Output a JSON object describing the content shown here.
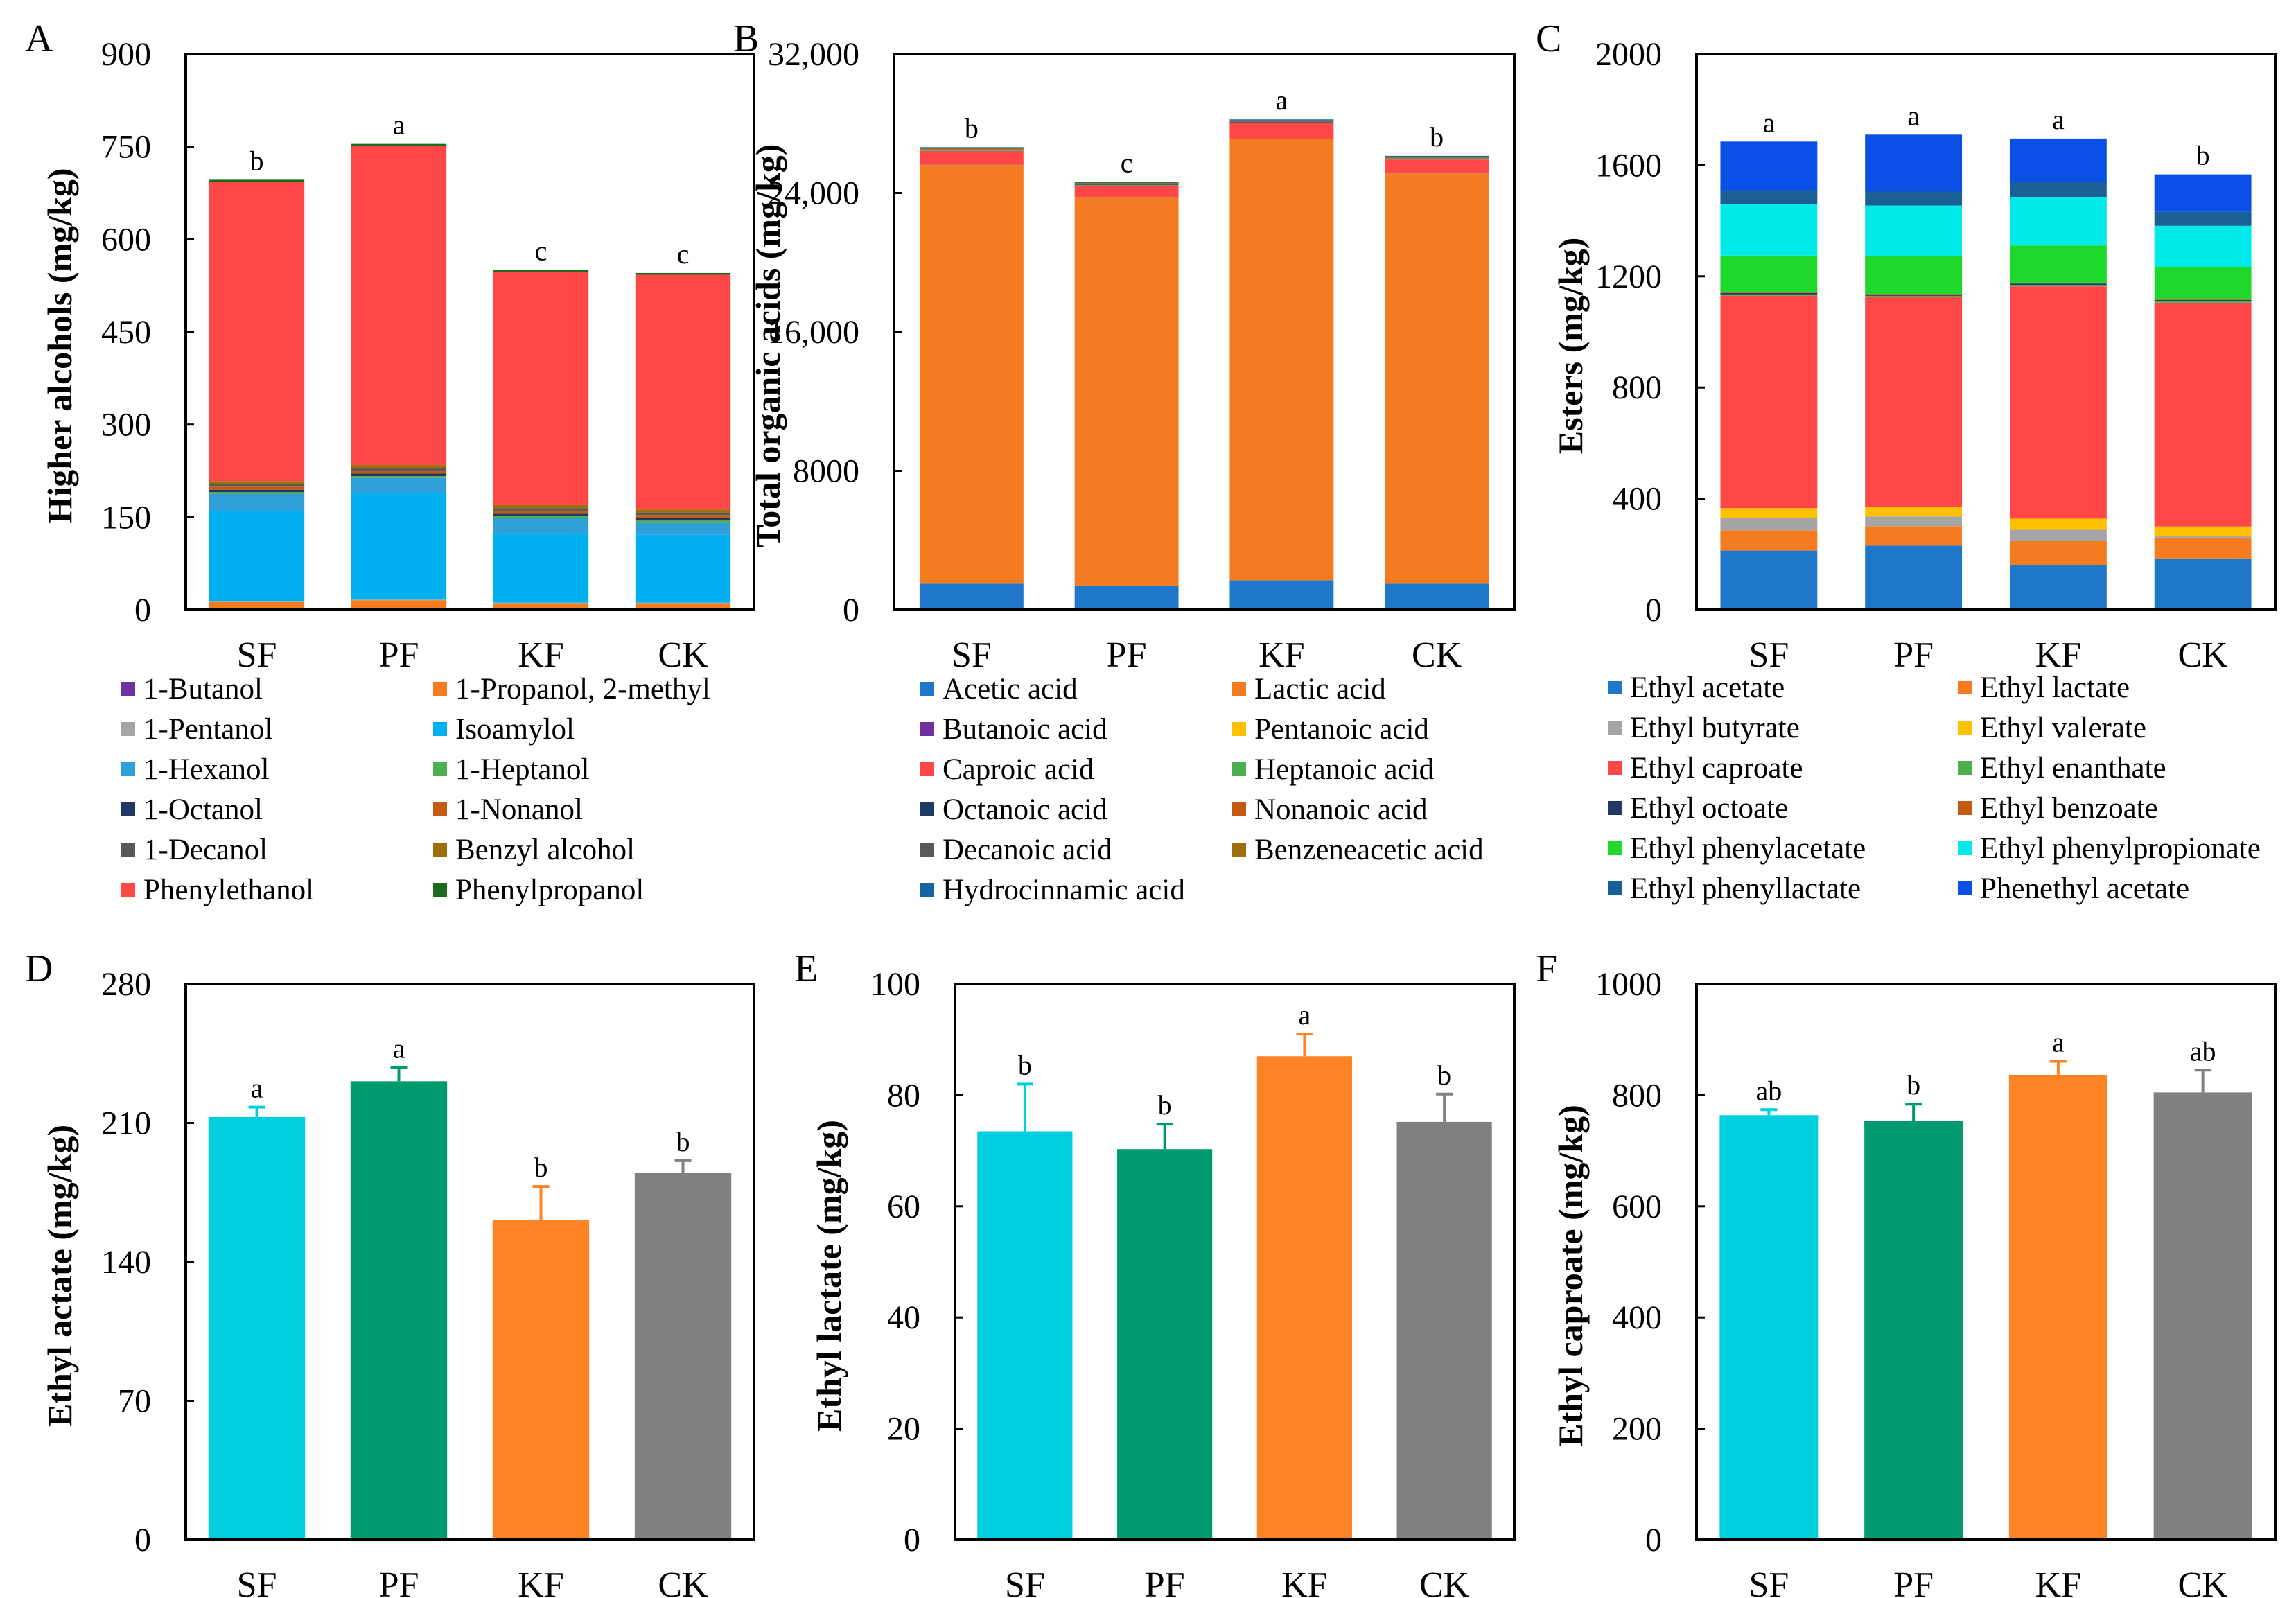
{
  "chart_data": [
    {
      "panel": "A",
      "type": "bar",
      "stacked": true,
      "ylabel": "Higher alcohols (mg/kg)",
      "ylim": [
        0,
        900
      ],
      "yticks": [
        "0",
        "150",
        "300",
        "450",
        "600",
        "750",
        "900"
      ],
      "categories": [
        "SF",
        "PF",
        "KF",
        "CK"
      ],
      "significance": [
        "b",
        "a",
        "c",
        "c"
      ],
      "legend_cols": 2,
      "series": [
        {
          "name": "1-Butanol",
          "color": "#7030a0",
          "values": [
            0.5,
            0.5,
            0.5,
            0.5
          ]
        },
        {
          "name": "1-Propanol, 2-methyl",
          "color": "#f47b20",
          "values": [
            13,
            15,
            10,
            10
          ]
        },
        {
          "name": "1-Pentanol",
          "color": "#a5a5a5",
          "values": [
            1,
            1,
            1,
            1
          ]
        },
        {
          "name": "Isoamylol",
          "color": "#00b0f0",
          "values": [
            145,
            172,
            112,
            110
          ]
        },
        {
          "name": "1-Hexanol",
          "color": "#2e9fd8",
          "values": [
            28,
            25,
            25,
            20
          ]
        },
        {
          "name": "1-Heptanol",
          "color": "#4caf50",
          "values": [
            3,
            3,
            3,
            3
          ]
        },
        {
          "name": "1-Octanol",
          "color": "#1f3864",
          "values": [
            4,
            4,
            4,
            4
          ]
        },
        {
          "name": "1-Nonanol",
          "color": "#c55a11",
          "values": [
            5,
            5,
            5,
            5
          ]
        },
        {
          "name": "1-Decanol",
          "color": "#595959",
          "values": [
            4,
            4,
            4,
            4
          ]
        },
        {
          "name": "Benzyl alcohol",
          "color": "#9c6f0a",
          "values": [
            5,
            5,
            5,
            5
          ]
        },
        {
          "name": "Phenylethanol",
          "color": "#ff4747",
          "values": [
            485,
            517,
            378,
            380
          ]
        },
        {
          "name": "Phenylpropanol",
          "color": "#1e6b1e",
          "values": [
            3,
            3,
            3,
            3
          ]
        }
      ]
    },
    {
      "panel": "B",
      "type": "bar",
      "stacked": true,
      "ylabel": "Total organic acids (mg/kg)",
      "ylim": [
        0,
        32000
      ],
      "yticks": [
        "0",
        "8000",
        "16,000",
        "24,000",
        "32,000"
      ],
      "categories": [
        "SF",
        "PF",
        "KF",
        "CK"
      ],
      "significance": [
        "b",
        "c",
        "a",
        "b"
      ],
      "legend_cols": 2,
      "series": [
        {
          "name": "Acetic acid",
          "color": "#1f77c9",
          "values": [
            1500,
            1400,
            1700,
            1500
          ]
        },
        {
          "name": "Lactic acid",
          "color": "#f47b20",
          "values": [
            24100,
            22300,
            25400,
            23600
          ]
        },
        {
          "name": "Butanoic acid",
          "color": "#7030a0",
          "values": [
            10,
            10,
            10,
            10
          ]
        },
        {
          "name": "Pentanoic acid",
          "color": "#ffc000",
          "values": [
            10,
            10,
            10,
            10
          ]
        },
        {
          "name": "Caproic acid",
          "color": "#ff4747",
          "values": [
            800,
            700,
            900,
            800
          ]
        },
        {
          "name": "Heptanoic acid",
          "color": "#4caf50",
          "values": [
            30,
            30,
            30,
            30
          ]
        },
        {
          "name": "Octanoic acid",
          "color": "#1f3864",
          "values": [
            30,
            30,
            30,
            30
          ]
        },
        {
          "name": "Nonanoic acid",
          "color": "#c55a11",
          "values": [
            20,
            20,
            20,
            20
          ]
        },
        {
          "name": "Decanoic acid",
          "color": "#595959",
          "values": [
            30,
            30,
            30,
            30
          ]
        },
        {
          "name": "Benzeneacetic acid",
          "color": "#9c6f0a",
          "values": [
            50,
            50,
            50,
            50
          ]
        },
        {
          "name": "Hydrocinnamic acid",
          "color": "#1565a0",
          "values": [
            60,
            60,
            60,
            60
          ]
        }
      ]
    },
    {
      "panel": "C",
      "type": "bar",
      "stacked": true,
      "ylabel": "Esters (mg/kg)",
      "ylim": [
        0,
        2000
      ],
      "yticks": [
        "0",
        "400",
        "800",
        "1200",
        "1600",
        "2000"
      ],
      "categories": [
        "SF",
        "PF",
        "KF",
        "CK"
      ],
      "significance": [
        "a",
        "a",
        "a",
        "b"
      ],
      "legend_cols": 2,
      "series": [
        {
          "name": "Ethyl acetate",
          "color": "#1f77c9",
          "values": [
            213,
            231,
            161,
            185
          ]
        },
        {
          "name": "Ethyl lactate",
          "color": "#f47b20",
          "values": [
            73,
            70,
            87,
            75
          ]
        },
        {
          "name": "Ethyl butyrate",
          "color": "#a5a5a5",
          "values": [
            45,
            35,
            40,
            5
          ]
        },
        {
          "name": "Ethyl valerate",
          "color": "#ffc000",
          "values": [
            35,
            35,
            40,
            35
          ]
        },
        {
          "name": "Ethyl caproate",
          "color": "#ff4747",
          "values": [
            764,
            754,
            836,
            805
          ]
        },
        {
          "name": "Ethyl enanthate",
          "color": "#4caf50",
          "values": [
            5,
            5,
            5,
            5
          ]
        },
        {
          "name": "Ethyl octoate",
          "color": "#1f3864",
          "values": [
            5,
            5,
            5,
            5
          ]
        },
        {
          "name": "Ethyl benzoate",
          "color": "#c55a11",
          "values": [
            2,
            2,
            2,
            2
          ]
        },
        {
          "name": "Ethyl phenylacetate",
          "color": "#1ed92b",
          "values": [
            133,
            135,
            135,
            115
          ]
        },
        {
          "name": "Ethyl phenylpropionate",
          "color": "#00eaea",
          "values": [
            185,
            183,
            175,
            150
          ]
        },
        {
          "name": "Ethyl phenyllactate",
          "color": "#1a5f96",
          "values": [
            50,
            50,
            55,
            50
          ]
        },
        {
          "name": "Phenethyl acetate",
          "color": "#0a50e6",
          "values": [
            175,
            205,
            155,
            135
          ]
        }
      ]
    },
    {
      "panel": "D",
      "type": "bar",
      "ylabel": "Ethyl actate (mg/kg)",
      "ylim": [
        0,
        280
      ],
      "yticks": [
        "0",
        "70",
        "140",
        "210",
        "280"
      ],
      "categories": [
        "SF",
        "PF",
        "KF",
        "CK"
      ],
      "values": [
        213,
        231,
        161,
        185
      ],
      "errors": [
        5,
        7,
        17,
        6
      ],
      "significance": [
        "a",
        "a",
        "b",
        "b"
      ],
      "colors": [
        "#00cfe0",
        "#009a6e",
        "#ff8225",
        "#808080"
      ]
    },
    {
      "panel": "E",
      "type": "bar",
      "ylabel": "Ethyl lactate (mg/kg)",
      "ylim": [
        0,
        100
      ],
      "yticks": [
        "0",
        "20",
        "40",
        "60",
        "80",
        "100"
      ],
      "categories": [
        "SF",
        "PF",
        "KF",
        "CK"
      ],
      "values": [
        73.5,
        70.3,
        87.0,
        75.2
      ],
      "errors": [
        8.5,
        4.5,
        4.0,
        5.0
      ],
      "significance": [
        "b",
        "b",
        "a",
        "b"
      ],
      "colors": [
        "#00cfe0",
        "#009a6e",
        "#ff8225",
        "#808080"
      ]
    },
    {
      "panel": "F",
      "type": "bar",
      "ylabel": "Ethyl caproate (mg/kg)",
      "ylim": [
        0,
        1000
      ],
      "yticks": [
        "0",
        "200",
        "400",
        "600",
        "800",
        "1000"
      ],
      "categories": [
        "SF",
        "PF",
        "KF",
        "CK"
      ],
      "values": [
        764,
        754,
        836,
        805
      ],
      "errors": [
        10,
        30,
        25,
        40
      ],
      "significance": [
        "ab",
        "b",
        "a",
        "ab"
      ],
      "colors": [
        "#00cfe0",
        "#009a6e",
        "#ff8225",
        "#808080"
      ]
    }
  ]
}
